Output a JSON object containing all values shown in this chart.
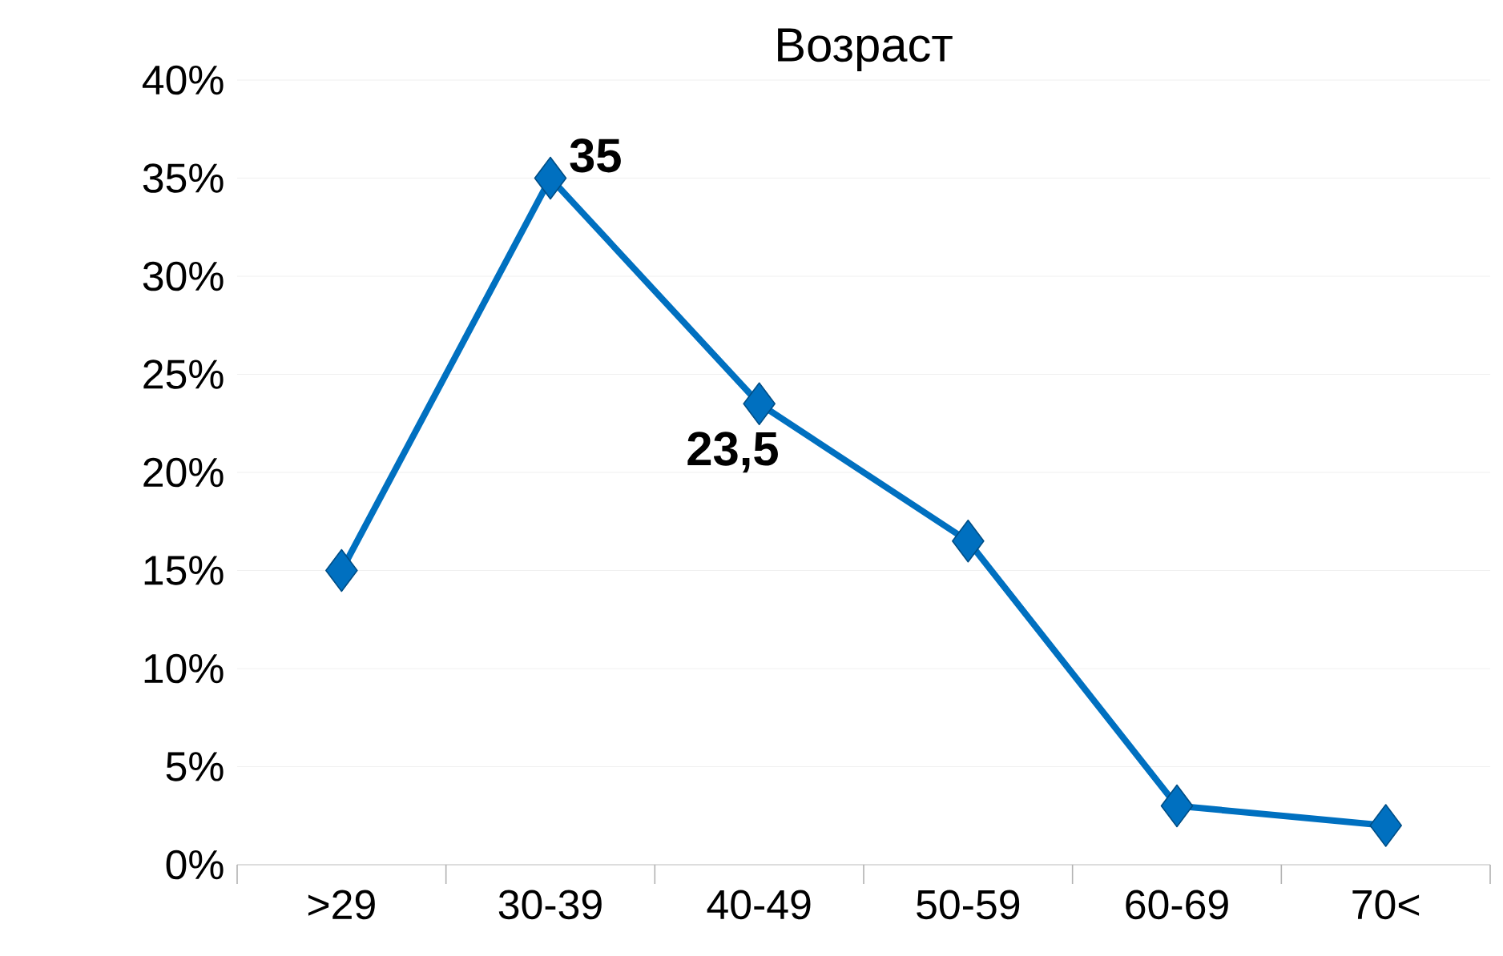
{
  "chart_data": {
    "type": "line",
    "title": "Возраст",
    "categories": [
      ">29",
      "30-39",
      "40-49",
      "50-59",
      "60-69",
      "70<"
    ],
    "values": [
      15,
      35,
      23.5,
      16.5,
      3,
      2
    ],
    "value_labels": [
      null,
      "35",
      "23,5",
      null,
      null,
      null
    ],
    "color": "#0070c0",
    "marker": "diamond",
    "line_style": "solid",
    "ylim": [
      0,
      40
    ],
    "yticks": [
      {
        "value": 0,
        "label": "0%"
      },
      {
        "value": 5,
        "label": "5%"
      },
      {
        "value": 10,
        "label": "10%"
      },
      {
        "value": 15,
        "label": "15%"
      },
      {
        "value": 20,
        "label": "20%"
      },
      {
        "value": 25,
        "label": "25%"
      },
      {
        "value": 30,
        "label": "30%"
      },
      {
        "value": 35,
        "label": "35%"
      },
      {
        "value": 40,
        "label": "40%"
      }
    ],
    "grid": "y"
  }
}
